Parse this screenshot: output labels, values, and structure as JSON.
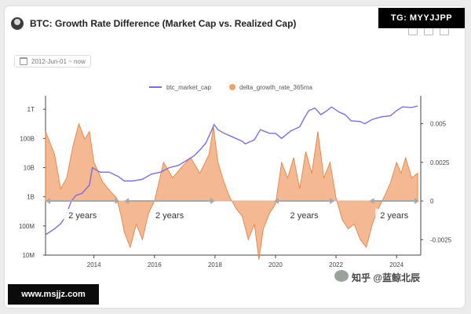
{
  "header": {
    "title": "BTC: Growth Rate Difference (Market Cap vs. Realized Cap)",
    "date_range": "2012-Jun-01 ~ now"
  },
  "watermarks": {
    "telegram": "TG: MYYJJPP",
    "site": "www.msjjz.com",
    "zhihu": "知乎 @蓝鲸北辰"
  },
  "colors": {
    "market_cap_line": "#7a6fd6",
    "delta_fill": "#f0a06d",
    "delta_stroke": "#e07d3c",
    "arrow": "#a8a8a8"
  },
  "chart_data": {
    "type": "line",
    "x_axis": {
      "range": [
        2012.4,
        2024.8
      ],
      "ticks": [
        2014,
        2016,
        2018,
        2020,
        2022,
        2024
      ],
      "tick_labels": [
        "2014",
        "2016",
        "2018",
        "2020",
        "2022",
        "2024"
      ]
    },
    "y_axis_left": {
      "scale": "log",
      "range": [
        10000000,
        2000000000000
      ],
      "ticks": [
        10000000,
        100000000,
        1000000000,
        10000000000,
        100000000000,
        1000000000000
      ],
      "tick_labels": [
        "10M",
        "100M",
        "1B",
        "10B",
        "100B",
        "1T"
      ]
    },
    "y_axis_right": {
      "scale": "linear",
      "range": [
        -0.0035,
        0.0065
      ],
      "ticks": [
        0.005,
        0.0025,
        0,
        -0.0025
      ],
      "tick_labels": [
        "0.005",
        "0.0025",
        "0",
        "-0.0025"
      ]
    },
    "legend": {
      "position": "top-center",
      "entries": [
        "btc_market_cap",
        "delta_growth_rate_365ma"
      ]
    },
    "series": [
      {
        "name": "btc_market_cap",
        "axis": "left",
        "kind": "line",
        "x": [
          2012.4,
          2012.7,
          2012.9,
          2013.05,
          2013.25,
          2013.4,
          2013.6,
          2013.85,
          2013.95,
          2014.2,
          2014.5,
          2014.8,
          2015.0,
          2015.3,
          2015.6,
          2015.9,
          2016.2,
          2016.5,
          2016.8,
          2017.0,
          2017.3,
          2017.5,
          2017.7,
          2017.9,
          2017.97,
          2018.1,
          2018.3,
          2018.6,
          2018.9,
          2019.0,
          2019.3,
          2019.5,
          2019.8,
          2020.0,
          2020.2,
          2020.5,
          2020.8,
          2020.95,
          2021.1,
          2021.3,
          2021.5,
          2021.7,
          2021.85,
          2022.1,
          2022.3,
          2022.5,
          2022.8,
          2022.95,
          2023.2,
          2023.5,
          2023.8,
          2024.0,
          2024.2,
          2024.5,
          2024.7
        ],
        "y": [
          50000000,
          80000000,
          120000000,
          200000000,
          700000000,
          1100000000,
          1300000000,
          2500000000,
          10000000000,
          7000000000,
          7000000000,
          5000000000,
          3500000000,
          3500000000,
          4000000000,
          6000000000,
          7000000000,
          10000000000,
          12000000000,
          16000000000,
          25000000000,
          40000000000,
          70000000000,
          200000000000,
          300000000000,
          200000000000,
          150000000000,
          110000000000,
          80000000000,
          65000000000,
          90000000000,
          200000000000,
          150000000000,
          150000000000,
          100000000000,
          180000000000,
          250000000000,
          500000000000,
          900000000000,
          1100000000000,
          650000000000,
          900000000000,
          1200000000000,
          800000000000,
          650000000000,
          400000000000,
          380000000000,
          320000000000,
          450000000000,
          550000000000,
          600000000000,
          900000000000,
          1200000000000,
          1150000000000,
          1300000000000
        ]
      },
      {
        "name": "delta_growth_rate_365ma",
        "axis": "right",
        "kind": "area",
        "x": [
          2012.4,
          2012.7,
          2012.9,
          2013.1,
          2013.3,
          2013.5,
          2013.7,
          2013.85,
          2014.0,
          2014.3,
          2014.6,
          2014.75,
          2014.9,
          2015.0,
          2015.2,
          2015.4,
          2015.6,
          2015.8,
          2016.0,
          2016.3,
          2016.6,
          2016.9,
          2017.2,
          2017.5,
          2017.8,
          2017.95,
          2018.1,
          2018.3,
          2018.5,
          2018.7,
          2018.9,
          2019.1,
          2019.3,
          2019.45,
          2019.6,
          2019.8,
          2020.0,
          2020.2,
          2020.4,
          2020.6,
          2020.8,
          2021.0,
          2021.2,
          2021.4,
          2021.6,
          2021.8,
          2022.0,
          2022.2,
          2022.4,
          2022.6,
          2022.8,
          2023.0,
          2023.2,
          2023.4,
          2023.6,
          2023.8,
          2024.0,
          2024.15,
          2024.3,
          2024.5,
          2024.7
        ],
        "y": [
          0.0045,
          0.003,
          0.0008,
          0.0015,
          0.0035,
          0.005,
          0.004,
          0.0045,
          0.0025,
          0.0012,
          0.0005,
          0.0002,
          -0.001,
          -0.002,
          -0.003,
          -0.0015,
          -0.0025,
          -0.0008,
          0.0,
          0.0025,
          0.0015,
          0.0022,
          0.0028,
          0.0018,
          0.003,
          0.0048,
          0.0025,
          0.0012,
          0.0002,
          -0.0005,
          -0.001,
          -0.0025,
          -0.0015,
          -0.0038,
          -0.0018,
          -0.0008,
          -0.0002,
          0.0025,
          0.0015,
          0.0028,
          0.0008,
          0.0032,
          0.0018,
          0.0045,
          0.0015,
          0.0025,
          0.0002,
          -0.0012,
          -0.0018,
          -0.0015,
          -0.0025,
          -0.003,
          -0.0015,
          -0.0005,
          0.0003,
          0.0012,
          0.0025,
          0.0018,
          0.0028,
          0.0015,
          0.0018
        ]
      }
    ],
    "annotations": [
      {
        "text": "2 years",
        "x_start": 2012.4,
        "x_end": 2014.85
      },
      {
        "text": "2 years",
        "x_start": 2015.0,
        "x_end": 2018.0
      },
      {
        "text": "2 years",
        "x_start": 2019.95,
        "x_end": 2021.95
      },
      {
        "text": "2 years",
        "x_start": 2023.1,
        "x_end": 2024.75
      }
    ]
  }
}
